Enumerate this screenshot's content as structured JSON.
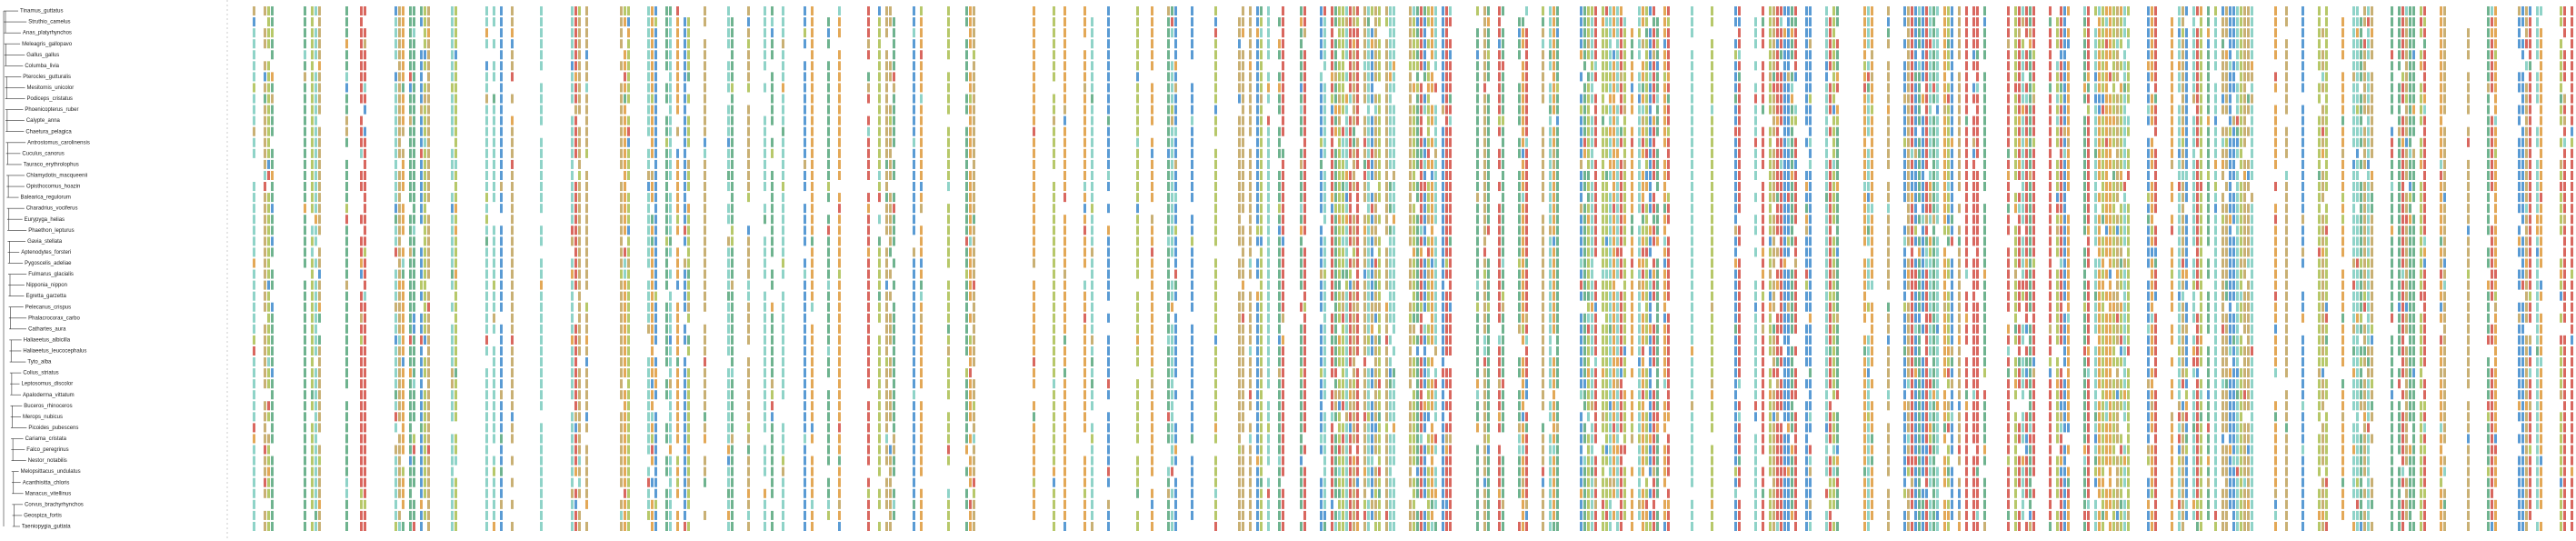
{
  "taxa": [
    "Tinamus_guttatus",
    "Struthio_camelus",
    "Anas_platyrhynchos",
    "Meleagris_gallopavo",
    "Gallus_gallus",
    "Columba_livia",
    "Pterocles_gutturalis",
    "Mesitornis_unicolor",
    "Podiceps_cristatus",
    "Phoenicopterus_ruber",
    "Calypte_anna",
    "Chaetura_pelagica",
    "Antrostomus_carolinensis",
    "Cuculus_canorus",
    "Tauraco_erythrolophus",
    "Chlamydotis_macqueenii",
    "Opisthocomus_hoazin",
    "Balearica_regulorum",
    "Charadrius_vociferus",
    "Eurypyga_helias",
    "Phaethon_lepturus",
    "Gavia_stellata",
    "Aptenodytes_forsteri",
    "Pygoscelis_adeliae",
    "Fulmarus_glacialis",
    "Nipponia_nippon",
    "Egretta_garzetta",
    "Pelecanus_crispus",
    "Phalacrocorax_carbo",
    "Cathartes_aura",
    "Haliaeetus_albicilla",
    "Haliaeetus_leucocephalus",
    "Tyto_alba",
    "Colius_striatus",
    "Leptosomus_discolor",
    "Apaloderma_vittatum",
    "Buceros_rhinoceros",
    "Merops_nubicus",
    "Picoides_pubescens",
    "Cariama_cristata",
    "Falco_peregrinus",
    "Nestor_notabilis",
    "Melopsittacus_undulatus",
    "Acanthisitta_chloris",
    "Manacus_vitellinus",
    "Corvus_brachyrhynchos",
    "Geospiza_fortis",
    "Taeniopygia_guttata"
  ]
}
